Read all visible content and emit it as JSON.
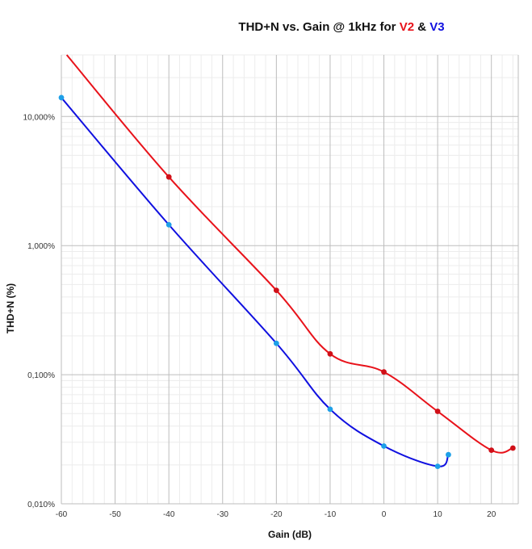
{
  "chart_data": {
    "type": "line",
    "title_parts": [
      {
        "text": "THD+N vs. Gain @ 1kHz for ",
        "color": "#111111"
      },
      {
        "text": "V2",
        "color": "#e8121a"
      },
      {
        "text": " & ",
        "color": "#111111"
      },
      {
        "text": "V3",
        "color": "#1010e0"
      }
    ],
    "xlabel": "Gain (dB)",
    "ylabel": "THD+N  (%)",
    "xlim": [
      -60,
      25
    ],
    "ylim": [
      0.01,
      30
    ],
    "y_scale": "log",
    "x_ticks": [
      "-60",
      "-50",
      "-40",
      "-30",
      "-20",
      "-10",
      "0",
      "10",
      "20"
    ],
    "x_tick_values": [
      -60,
      -50,
      -40,
      -30,
      -20,
      -10,
      0,
      10,
      20
    ],
    "y_ticks": [
      "10,000%",
      "1,000%",
      "0,100%",
      "0,010%"
    ],
    "y_tick_values": [
      10,
      1,
      0.1,
      0.01
    ],
    "grid": true,
    "series": [
      {
        "name": "V2",
        "color": "#e8121a",
        "marker_color": "#d01018",
        "x": [
          -40,
          -20,
          -10,
          0,
          10,
          20,
          24
        ],
        "y": [
          3.4,
          0.45,
          0.145,
          0.105,
          0.052,
          0.026,
          0.027
        ],
        "line_start": {
          "x": -59,
          "y": 30
        }
      },
      {
        "name": "V3",
        "color": "#1010e0",
        "marker_color": "#1ea0e8",
        "x": [
          -60,
          -40,
          -20,
          -10,
          0,
          10,
          12
        ],
        "y": [
          14,
          1.45,
          0.175,
          0.054,
          0.028,
          0.0195,
          0.024
        ]
      }
    ]
  }
}
